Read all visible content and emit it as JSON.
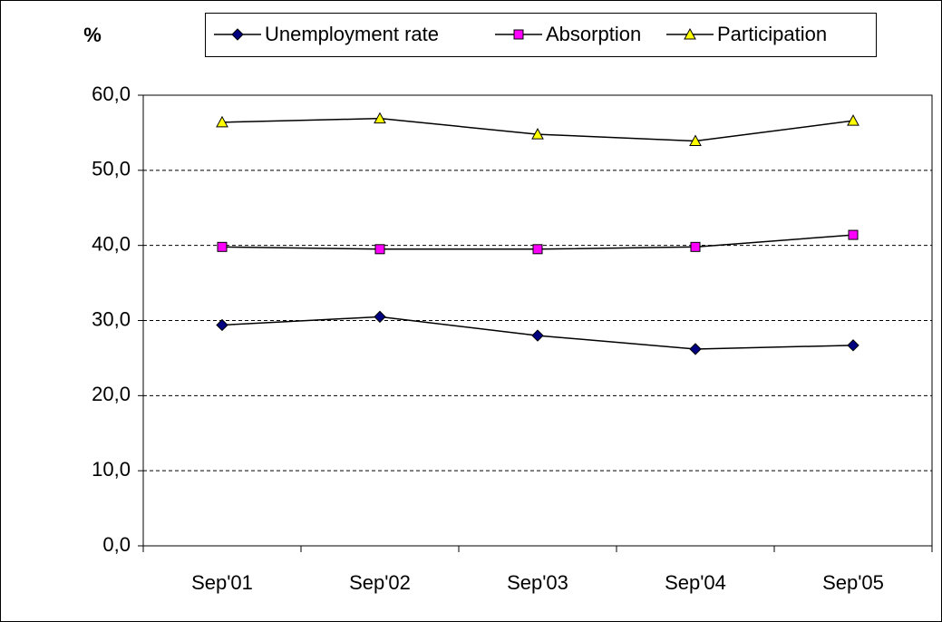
{
  "chart_data": {
    "type": "line",
    "y_label": "%",
    "categories": [
      "Sep'01",
      "Sep'02",
      "Sep'03",
      "Sep'04",
      "Sep'05"
    ],
    "series": [
      {
        "name": "Unemployment rate",
        "color": "#000080",
        "marker": "diamond",
        "values": [
          29.4,
          30.5,
          28.0,
          26.2,
          26.7
        ]
      },
      {
        "name": "Absorption",
        "color": "#ff00ff",
        "marker": "square",
        "values": [
          39.8,
          39.5,
          39.5,
          39.8,
          41.4
        ]
      },
      {
        "name": "Participation",
        "color": "#ffff00",
        "marker": "triangle",
        "values": [
          56.4,
          56.9,
          54.8,
          53.9,
          56.6
        ]
      }
    ],
    "ylim": [
      0,
      60
    ],
    "yticks": [
      {
        "value": 0,
        "label": "0,0"
      },
      {
        "value": 10,
        "label": "10,0"
      },
      {
        "value": 20,
        "label": "20,0"
      },
      {
        "value": 30,
        "label": "30,0"
      },
      {
        "value": 40,
        "label": "40,0"
      },
      {
        "value": 50,
        "label": "50,0"
      },
      {
        "value": 60,
        "label": "60,0"
      }
    ],
    "grid": true,
    "legend": "top"
  }
}
